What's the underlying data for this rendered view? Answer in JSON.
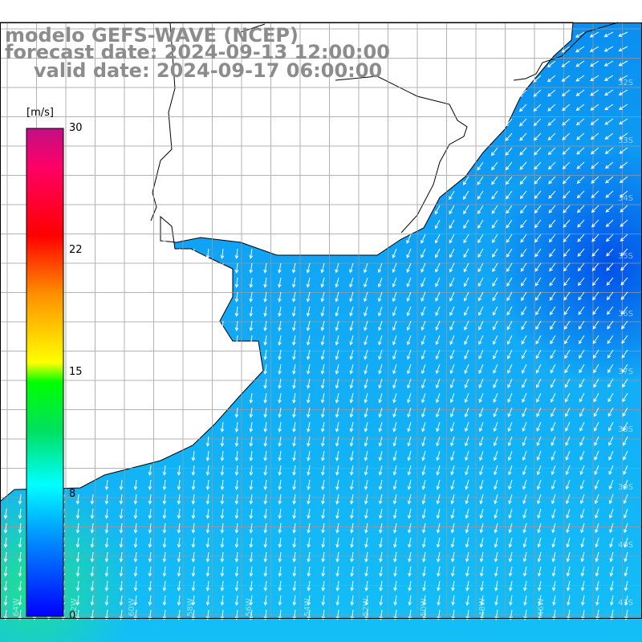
{
  "title": {
    "line1": "modelo GEFS-WAVE (NCEP)",
    "line2": "forecast date: 2024-09-13 12:00:00",
    "line3": "valid date: 2024-09-17 06:00:00"
  },
  "colorbar": {
    "unit": "[m/s]",
    "min": 0,
    "max": 30,
    "ticks": [
      {
        "value": 30,
        "label": "30"
      },
      {
        "value": 22,
        "label": "22"
      },
      {
        "value": 15,
        "label": "15"
      },
      {
        "value": 8,
        "label": "8"
      },
      {
        "value": 0,
        "label": "0"
      }
    ],
    "colors": [
      "#0000ff",
      "#0090ff",
      "#00ffff",
      "#00e060",
      "#00ff00",
      "#ffff00",
      "#ff9000",
      "#ff0000",
      "#ff0066",
      "#c01085"
    ]
  },
  "map_colors": {
    "land": "#ffffff",
    "coast": "#000000",
    "grid": "#9a9a9a",
    "arrows": "#ffffff"
  },
  "lon_labels": [
    "64W",
    "62W",
    "60W",
    "58W",
    "56W",
    "54W",
    "52W",
    "50W",
    "48W",
    "46W"
  ],
  "lat_labels": [
    "32S",
    "33S",
    "34S",
    "35S",
    "36S",
    "37S",
    "38S",
    "39S",
    "40S",
    "41S"
  ]
}
